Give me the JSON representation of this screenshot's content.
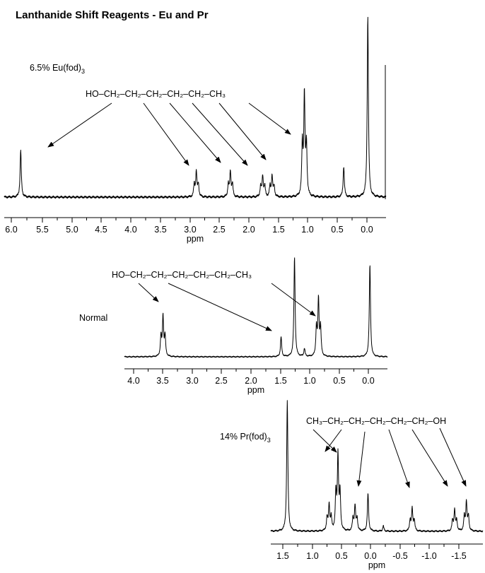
{
  "title": "Lanthanide Shift Reagents - Eu and Pr",
  "panels": [
    {
      "label": "6.5% Eu(fod)",
      "label_sub": "3",
      "structure": "HO–CH₂–CH₂–CH₂–CH₂–CH₂–CH₃",
      "xlabel": "ppm",
      "ticks": [
        "6.0",
        "5.5",
        "5.0",
        "4.5",
        "4.0",
        "3.5",
        "3.0",
        "2.5",
        "2.0",
        "1.5",
        "1.0",
        "0.5",
        "0.0"
      ]
    },
    {
      "label": "Normal",
      "structure": "HO–CH₂–CH₂–CH₂–CH₂–CH₂–CH₃",
      "xlabel": "ppm",
      "ticks": [
        "4.0",
        "3.5",
        "3.0",
        "2.5",
        "2.0",
        "1.5",
        "1.0",
        "0.5",
        "0.0"
      ]
    },
    {
      "label": "14% Pr(fod)",
      "label_sub": "3",
      "structure": "CH₃–CH₂–CH₂–CH₂–CH₂–CH₂–OH",
      "xlabel": "ppm",
      "ticks": [
        "1.5",
        "1.0",
        "0.5",
        "0.0",
        "-0.5",
        "-1.0",
        "-1.5"
      ]
    }
  ],
  "chart_data": [
    {
      "type": "line",
      "xlabel": "ppm",
      "xlim": [
        6.2,
        -0.3
      ],
      "x_reversed": true,
      "peaks": [
        {
          "ppm": 5.92,
          "height": 0.26,
          "mult": 1
        },
        {
          "ppm": 2.93,
          "height": 0.18,
          "mult": 3
        },
        {
          "ppm": 2.35,
          "height": 0.18,
          "mult": 3
        },
        {
          "ppm": 1.8,
          "height": 0.15,
          "mult": 3
        },
        {
          "ppm": 1.64,
          "height": 0.15,
          "mult": 3
        },
        {
          "ppm": 1.09,
          "height": 0.72,
          "mult": 3
        },
        {
          "ppm": 0.42,
          "height": 0.17,
          "mult": 1
        },
        {
          "ppm": 0.01,
          "height": 1.0,
          "mult": 1
        }
      ]
    },
    {
      "type": "line",
      "xlabel": "ppm",
      "xlim": [
        4.2,
        -0.3
      ],
      "x_reversed": true,
      "peaks": [
        {
          "ppm": 3.54,
          "height": 0.52,
          "mult": 3
        },
        {
          "ppm": 1.52,
          "height": 0.2,
          "mult": 1
        },
        {
          "ppm": 1.29,
          "height": 1.0,
          "mult": 1
        },
        {
          "ppm": 1.12,
          "height": 0.08,
          "mult": 1
        },
        {
          "ppm": 0.88,
          "height": 0.74,
          "mult": 3
        },
        {
          "ppm": 0.0,
          "height": 0.93,
          "mult": 1
        }
      ]
    },
    {
      "type": "line",
      "xlabel": "ppm",
      "xlim": [
        1.65,
        -1.95
      ],
      "x_reversed": true,
      "peaks": [
        {
          "ppm": 1.37,
          "height": 1.0,
          "mult": 1
        },
        {
          "ppm": 0.66,
          "height": 0.26,
          "mult": 3
        },
        {
          "ppm": 0.51,
          "height": 0.74,
          "mult": 3
        },
        {
          "ppm": 0.22,
          "height": 0.25,
          "mult": 3
        },
        {
          "ppm": 0.0,
          "height": 0.29,
          "mult": 1
        },
        {
          "ppm": -0.26,
          "height": 0.04,
          "mult": 1
        },
        {
          "ppm": -0.75,
          "height": 0.22,
          "mult": 3
        },
        {
          "ppm": -1.47,
          "height": 0.21,
          "mult": 3
        },
        {
          "ppm": -1.67,
          "height": 0.29,
          "mult": 3
        }
      ]
    }
  ]
}
